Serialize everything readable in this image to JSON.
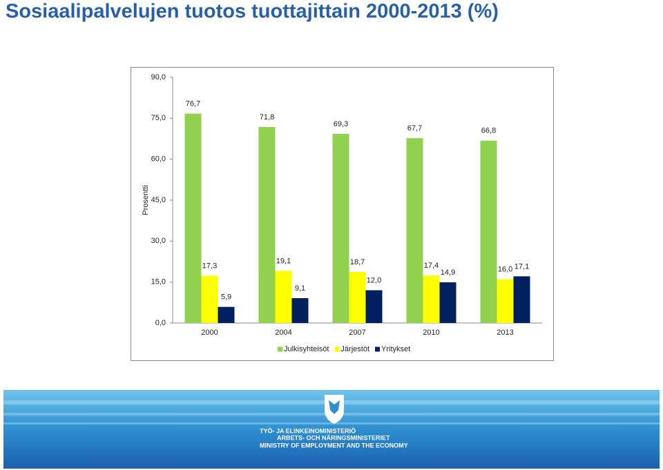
{
  "chart_data": {
    "type": "bar",
    "title": "Sosiaalipalvelujen tuotos tuottajittain 2000-2013 (%)",
    "ylabel": "Prosentti",
    "categories": [
      "2000",
      "2004",
      "2007",
      "2010",
      "2013"
    ],
    "series": [
      {
        "name": "Julkisyhteisöt",
        "color": "#92d050",
        "values": [
          76.7,
          71.8,
          69.3,
          67.7,
          66.8
        ],
        "value_labels": [
          "76,7",
          "71,8",
          "69,3",
          "67,7",
          "66,8"
        ]
      },
      {
        "name": "Järjestöt",
        "color": "#ffff00",
        "values": [
          17.3,
          19.1,
          18.7,
          17.4,
          16.0
        ],
        "value_labels": [
          "17,3",
          "19,1",
          "18,7",
          "17,4",
          "16,0"
        ]
      },
      {
        "name": "Yritykset",
        "color": "#002060",
        "values": [
          5.9,
          9.1,
          12.0,
          14.9,
          17.1
        ],
        "value_labels": [
          "5,9",
          "9,1",
          "12,0",
          "14,9",
          "17,1"
        ]
      }
    ],
    "ylim": [
      0,
      90
    ],
    "yticks": [
      {
        "value": 0,
        "label": "0,0"
      },
      {
        "value": 15,
        "label": "15,0"
      },
      {
        "value": 30,
        "label": "30,0"
      },
      {
        "value": 45,
        "label": "45,0"
      },
      {
        "value": 60,
        "label": "60,0"
      },
      {
        "value": 75,
        "label": "75,0"
      },
      {
        "value": 90,
        "label": "90,0"
      }
    ],
    "grid": false,
    "legend": "bottom"
  },
  "footer": {
    "lines": [
      "TYÖ- JA ELINKEINOMINISTERIÖ",
      "ARBETS- OCH NÄRINGSMINISTERIET",
      "MINISTRY OF EMPLOYMENT AND THE ECONOMY"
    ]
  }
}
